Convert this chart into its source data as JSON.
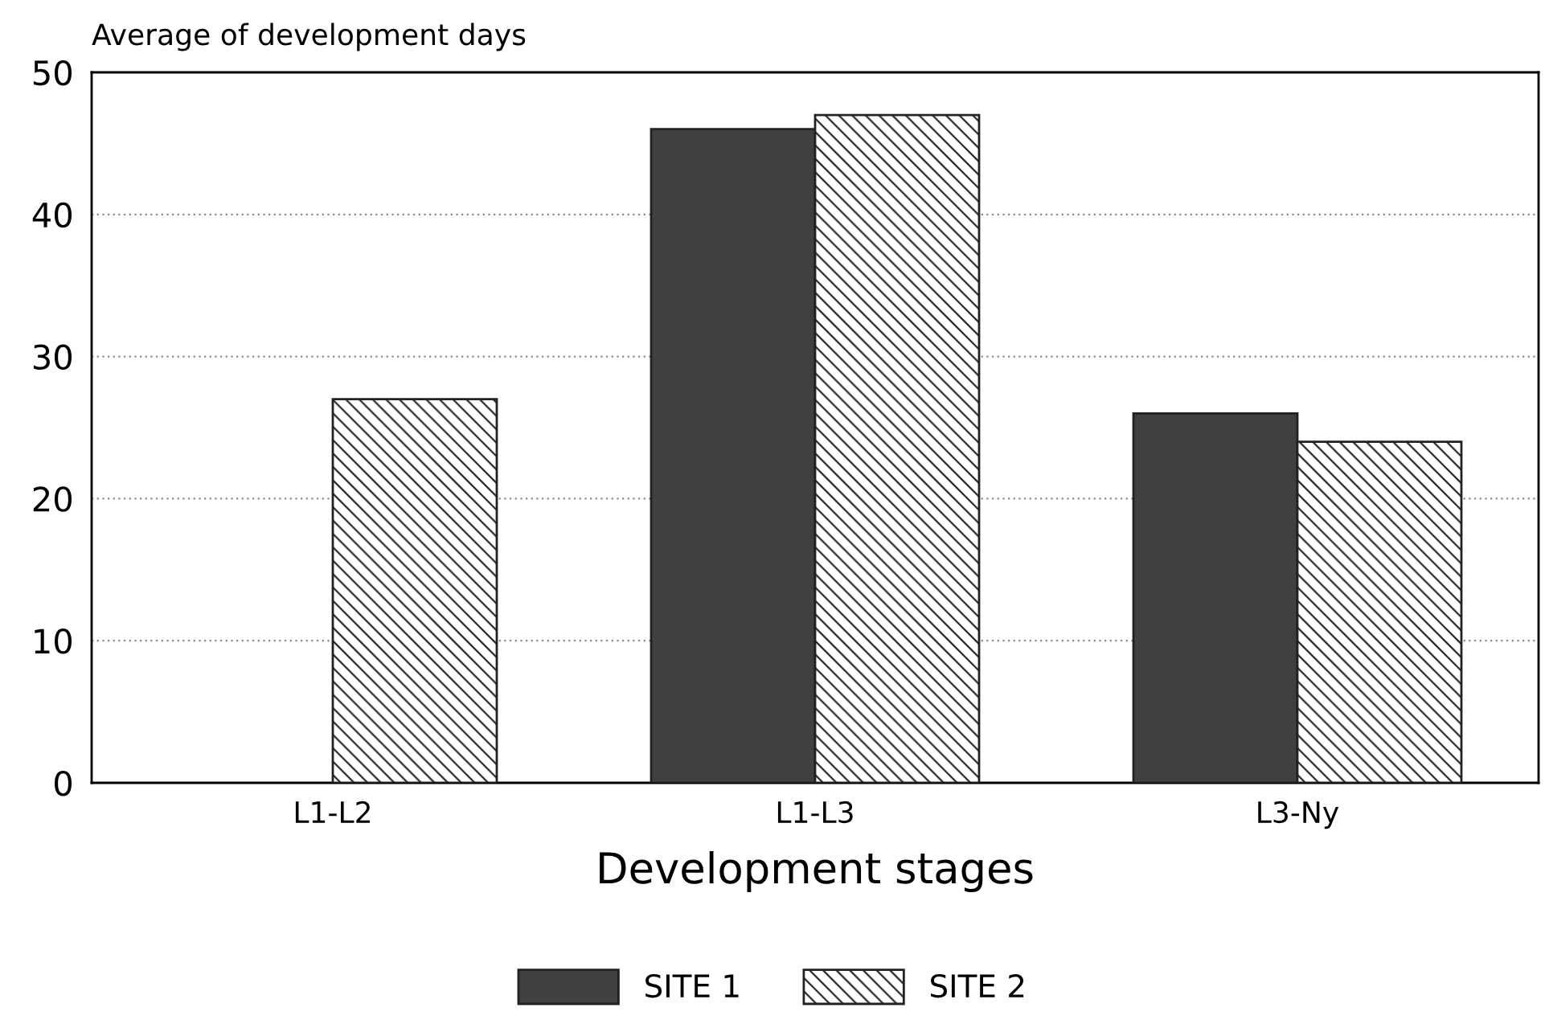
{
  "chart_data": {
    "type": "bar",
    "ylabel": "Average of development days",
    "xlabel": "Development stages",
    "categories": [
      "L1-L2",
      "L1-L3",
      "L3-Ny"
    ],
    "series": [
      {
        "name": "SITE 1",
        "color": "#404040",
        "values": [
          null,
          46,
          26
        ]
      },
      {
        "name": "SITE 2",
        "color": "#222222",
        "values": [
          27,
          47,
          24
        ]
      }
    ],
    "ylim": [
      0,
      50
    ],
    "yticks": [
      0,
      10,
      20,
      30,
      40,
      50
    ],
    "grid": "y",
    "legend": "bottom"
  }
}
